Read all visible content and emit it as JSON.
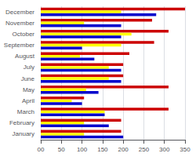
{
  "chart_data": {
    "type": "bar",
    "orientation": "horizontal",
    "categories": [
      "January",
      "February",
      "March",
      "April",
      "May",
      "June",
      "July",
      "August",
      "September",
      "October",
      "November",
      "December"
    ],
    "series": [
      {
        "color": "#cc0000",
        "values": [
          195,
          195,
          310,
          105,
          310,
          200,
          200,
          215,
          275,
          310,
          270,
          350
        ]
      },
      {
        "color": "#ffff00",
        "values": [
          105,
          105,
          155,
          75,
          110,
          165,
          165,
          95,
          195,
          220,
          105,
          195
        ]
      },
      {
        "color": "#0000cc",
        "values": [
          200,
          165,
          155,
          100,
          140,
          195,
          195,
          130,
          100,
          195,
          195,
          280
        ]
      }
    ],
    "xlim": [
      0,
      350
    ],
    "xticks": [
      {
        "value": 0,
        "label": "00"
      },
      50,
      100,
      150,
      200,
      250,
      300,
      350
    ],
    "grid": true
  }
}
